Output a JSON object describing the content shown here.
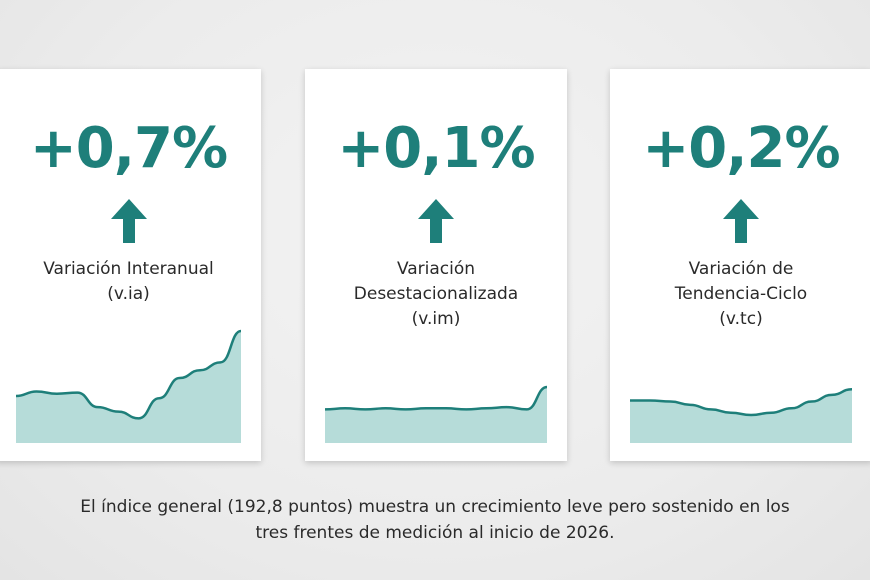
{
  "cards": [
    {
      "value": "+0,7%",
      "label_lines": [
        "Variación Interanual",
        "(v.ia)"
      ],
      "direction": "up"
    },
    {
      "value": "+0,1%",
      "label_lines": [
        "Variación",
        "Desestacionalizada",
        "(v.im)"
      ],
      "direction": "up"
    },
    {
      "value": "+0,2%",
      "label_lines": [
        "Variación de",
        "Tendencia-Ciclo",
        "(v.tc)"
      ],
      "direction": "up"
    }
  ],
  "caption_lines": [
    "El índice general (192,8 puntos) muestra un crecimiento leve pero sostenido en los",
    "tres frentes de medición al inicio de 2026."
  ],
  "colors": {
    "accent": "#1e7f7a",
    "area_fill": "#b6dcd9",
    "line": "#1e7f7a"
  },
  "chart_data": [
    {
      "type": "area",
      "axes_visible": false,
      "values": [
        0.42,
        0.46,
        0.44,
        0.45,
        0.32,
        0.28,
        0.22,
        0.4,
        0.58,
        0.65,
        0.72,
        1.0
      ]
    },
    {
      "type": "area",
      "axes_visible": false,
      "values": [
        0.3,
        0.31,
        0.3,
        0.31,
        0.3,
        0.31,
        0.31,
        0.3,
        0.31,
        0.32,
        0.3,
        0.5
      ]
    },
    {
      "type": "area",
      "axes_visible": false,
      "values": [
        0.38,
        0.38,
        0.37,
        0.34,
        0.3,
        0.27,
        0.25,
        0.27,
        0.31,
        0.37,
        0.43,
        0.48
      ]
    }
  ]
}
